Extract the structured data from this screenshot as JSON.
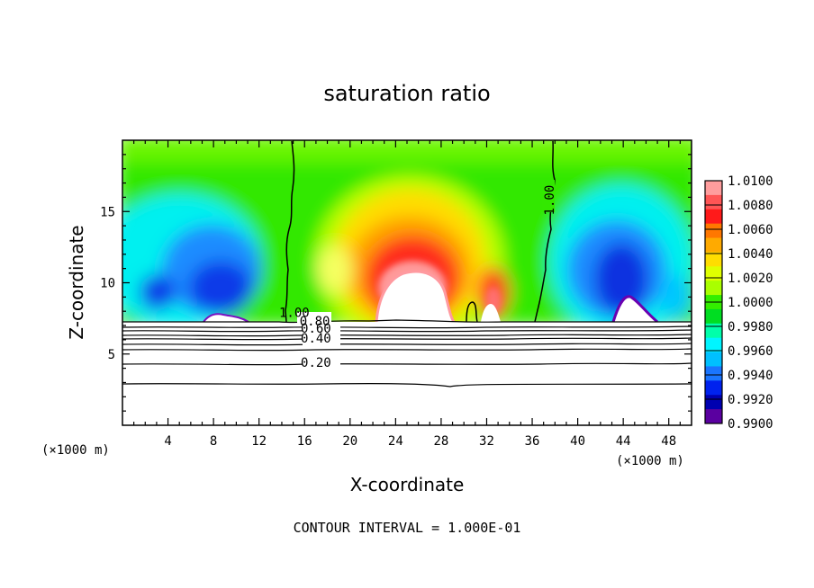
{
  "chart_data": {
    "type": "heatmap",
    "title": "saturation ratio",
    "xlabel": "X-coordinate",
    "ylabel": "Z-coordinate",
    "x_unit_left": "(×1000 m)",
    "x_unit_right": "(×1000 m)",
    "xlim": [
      0,
      50
    ],
    "ylim": [
      0,
      20
    ],
    "xticks": [
      4,
      8,
      12,
      16,
      20,
      24,
      28,
      32,
      36,
      40,
      44,
      48
    ],
    "yticks": [
      5,
      10,
      15
    ],
    "footer": "CONTOUR INTERVAL = 1.000E-01",
    "colorbar": {
      "levels": [
        "1.0100",
        "1.0080",
        "1.0060",
        "1.0040",
        "1.0020",
        "1.0000",
        "0.9980",
        "0.9960",
        "0.9940",
        "0.9920",
        "0.9900"
      ],
      "colors": [
        "#ff9d9d",
        "#ff5555",
        "#ff1a1a",
        "#ff7700",
        "#ffaa00",
        "#ffdd00",
        "#dfff00",
        "#a9ff00",
        "#33ee00",
        "#00dd22",
        "#00ffaa",
        "#00f5ff",
        "#00c0ff",
        "#1a75ff",
        "#0022ee",
        "#0000b0",
        "#5a00a0"
      ]
    },
    "contour_labels": [
      {
        "text": "1.00",
        "x": 15.1,
        "y": 7.6
      },
      {
        "text": "1.00",
        "x": 37.9,
        "y": 15.8,
        "rotate": true
      },
      {
        "text": "0.80",
        "x": 16.9,
        "y": 7.0
      },
      {
        "text": "0.60",
        "x": 17.0,
        "y": 6.5
      },
      {
        "text": "0.40",
        "x": 17.0,
        "y": 5.8
      },
      {
        "text": "0.20",
        "x": 17.0,
        "y": 4.1
      }
    ],
    "contour_lines_z": [
      7.2,
      7.0,
      6.8,
      6.5,
      6.3,
      6.0,
      5.7,
      4.4,
      2.9
    ]
  }
}
